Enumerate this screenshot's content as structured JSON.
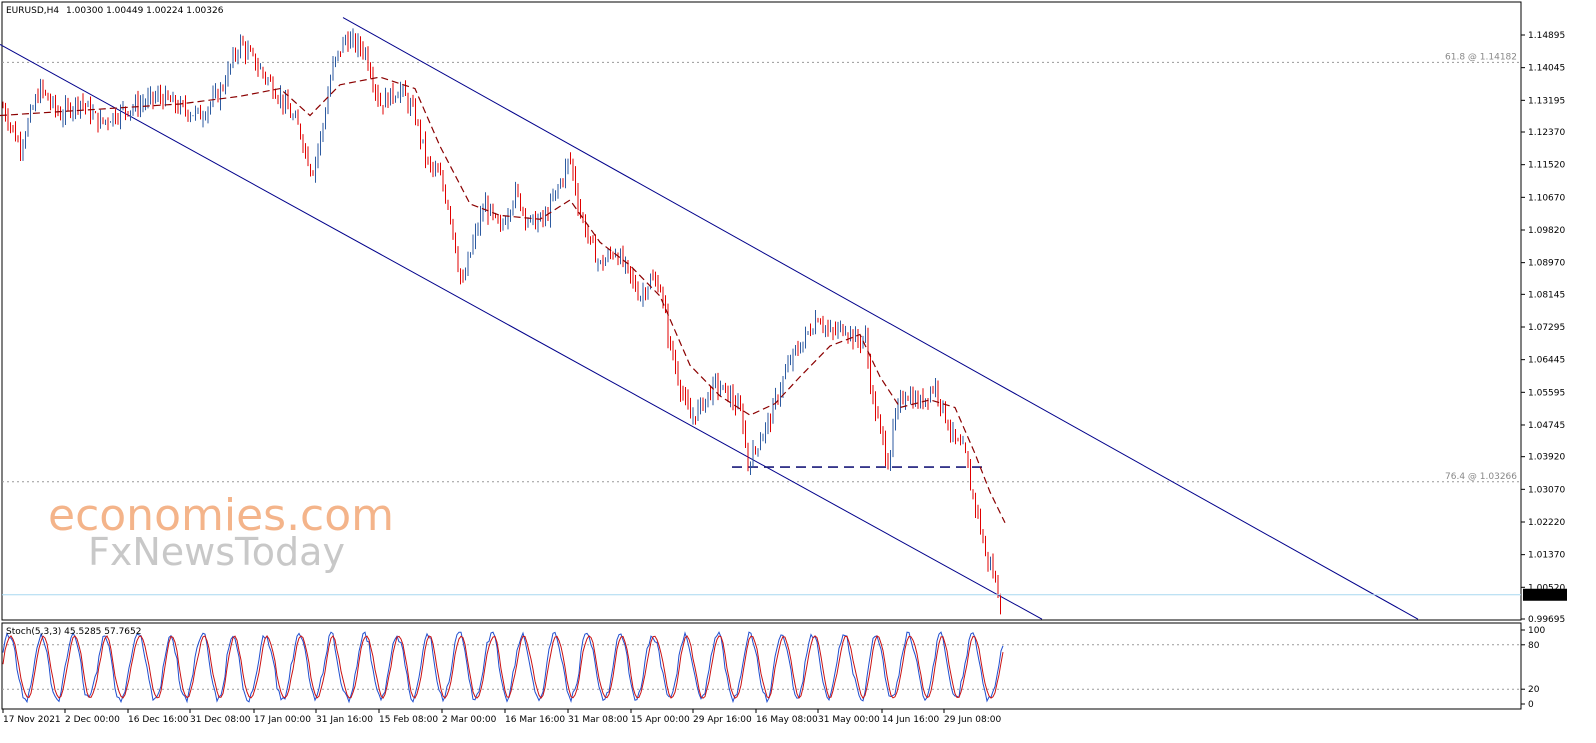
{
  "chart_data": {
    "type": "line",
    "header": {
      "symbol": "EURUSD,H4",
      "ohlc": "1.00300 1.00449 1.00224 1.00326"
    },
    "price_axis": {
      "ticks": [
        "1.14895",
        "1.14045",
        "1.13195",
        "1.12370",
        "1.11520",
        "1.10670",
        "1.09820",
        "1.08970",
        "1.08145",
        "1.07295",
        "1.06445",
        "1.05595",
        "1.04745",
        "1.03920",
        "1.03070",
        "1.02220",
        "1.01370",
        "1.00520",
        "0.99695"
      ],
      "ylim": [
        0.99695,
        1.14895
      ],
      "current_price": "1.00326"
    },
    "time_axis": {
      "labels": [
        "17 Nov 2021",
        "2 Dec 00:00",
        "16 Dec 16:00",
        "31 Dec 08:00",
        "17 Jan 00:00",
        "31 Jan 16:00",
        "15 Feb 08:00",
        "2 Mar 00:00",
        "16 Mar 16:00",
        "31 Mar 08:00",
        "15 Apr 00:00",
        "29 Apr 16:00",
        "16 May 08:00",
        "31 May 00:00",
        "14 Jun 16:00",
        "29 Jun 08:00"
      ]
    },
    "fib_levels": [
      {
        "label": "61.8 @ 1.14182",
        "value": 1.14182
      },
      {
        "label": "76.4 @ 1.03266",
        "value": 1.03266
      }
    ],
    "price_path": [
      [
        0,
        1.132
      ],
      [
        20,
        1.12
      ],
      [
        40,
        1.135
      ],
      [
        60,
        1.128
      ],
      [
        80,
        1.132
      ],
      [
        100,
        1.126
      ],
      [
        120,
        1.129
      ],
      [
        140,
        1.131
      ],
      [
        160,
        1.133
      ],
      [
        180,
        1.13
      ],
      [
        200,
        1.128
      ],
      [
        220,
        1.134
      ],
      [
        240,
        1.147
      ],
      [
        260,
        1.14
      ],
      [
        280,
        1.133
      ],
      [
        300,
        1.124
      ],
      [
        312,
        1.113
      ],
      [
        322,
        1.124
      ],
      [
        332,
        1.14
      ],
      [
        345,
        1.148
      ],
      [
        365,
        1.145
      ],
      [
        380,
        1.131
      ],
      [
        400,
        1.135
      ],
      [
        415,
        1.128
      ],
      [
        428,
        1.115
      ],
      [
        440,
        1.112
      ],
      [
        450,
        1.103
      ],
      [
        462,
        1.083
      ],
      [
        472,
        1.094
      ],
      [
        485,
        1.105
      ],
      [
        500,
        1.098
      ],
      [
        515,
        1.108
      ],
      [
        530,
        1.1
      ],
      [
        545,
        1.101
      ],
      [
        558,
        1.109
      ],
      [
        570,
        1.117
      ],
      [
        580,
        1.103
      ],
      [
        590,
        1.095
      ],
      [
        600,
        1.089
      ],
      [
        615,
        1.093
      ],
      [
        628,
        1.087
      ],
      [
        640,
        1.081
      ],
      [
        650,
        1.085
      ],
      [
        660,
        1.084
      ],
      [
        670,
        1.068
      ],
      [
        680,
        1.058
      ],
      [
        690,
        1.049
      ],
      [
        700,
        1.052
      ],
      [
        715,
        1.058
      ],
      [
        730,
        1.055
      ],
      [
        742,
        1.05
      ],
      [
        748,
        1.037
      ],
      [
        760,
        1.044
      ],
      [
        770,
        1.049
      ],
      [
        780,
        1.057
      ],
      [
        790,
        1.064
      ],
      [
        805,
        1.07
      ],
      [
        818,
        1.076
      ],
      [
        830,
        1.071
      ],
      [
        845,
        1.073
      ],
      [
        858,
        1.069
      ],
      [
        865,
        1.071
      ],
      [
        872,
        1.055
      ],
      [
        880,
        1.046
      ],
      [
        888,
        1.038
      ],
      [
        896,
        1.05
      ],
      [
        905,
        1.056
      ],
      [
        920,
        1.053
      ],
      [
        935,
        1.058
      ],
      [
        945,
        1.05
      ],
      [
        955,
        1.043
      ],
      [
        965,
        1.04
      ],
      [
        970,
        1.032
      ],
      [
        978,
        1.024
      ],
      [
        985,
        1.014
      ],
      [
        992,
        1.01
      ],
      [
        1000,
        1.002
      ]
    ],
    "moving_average": [
      [
        0,
        1.128
      ],
      [
        60,
        1.129
      ],
      [
        120,
        1.13
      ],
      [
        180,
        1.131
      ],
      [
        240,
        1.133
      ],
      [
        280,
        1.135
      ],
      [
        310,
        1.128
      ],
      [
        340,
        1.136
      ],
      [
        380,
        1.138
      ],
      [
        415,
        1.135
      ],
      [
        440,
        1.12
      ],
      [
        470,
        1.105
      ],
      [
        500,
        1.102
      ],
      [
        540,
        1.101
      ],
      [
        570,
        1.106
      ],
      [
        600,
        1.095
      ],
      [
        630,
        1.089
      ],
      [
        660,
        1.081
      ],
      [
        690,
        1.063
      ],
      [
        720,
        1.055
      ],
      [
        750,
        1.05
      ],
      [
        775,
        1.053
      ],
      [
        800,
        1.06
      ],
      [
        830,
        1.068
      ],
      [
        860,
        1.071
      ],
      [
        880,
        1.06
      ],
      [
        900,
        1.052
      ],
      [
        930,
        1.054
      ],
      [
        955,
        1.052
      ],
      [
        975,
        1.04
      ],
      [
        990,
        1.03
      ],
      [
        1005,
        1.022
      ]
    ],
    "channel_lines": [
      {
        "from": [
          0,
          1.1465
        ],
        "to": [
          1042,
          0.9969
        ]
      },
      {
        "from": [
          343,
          1.1535
        ],
        "to": [
          1418,
          0.9969
        ]
      }
    ],
    "support_line": {
      "from": [
        732,
        1.0365
      ],
      "to": [
        985,
        1.0365
      ]
    },
    "stochastic": {
      "label": "Stoch(5,3,3) 45.5285 57.7652",
      "levels": [
        "100",
        "80",
        "20",
        "0"
      ],
      "ylim": [
        0,
        100
      ]
    },
    "watermark": {
      "line1": "economies.com",
      "line2": "FxNewsToday"
    },
    "colors": {
      "up_candle": "#2c5aa0",
      "down_candle": "#e00000",
      "channel": "#00008b",
      "ma": "#8b0000",
      "main_line": "#4a7ad0",
      "sto_k": "#1f4fd0",
      "sto_d": "#cc1111",
      "watermark1": "#f4b48a",
      "watermark2": "#c8c8c8"
    }
  }
}
